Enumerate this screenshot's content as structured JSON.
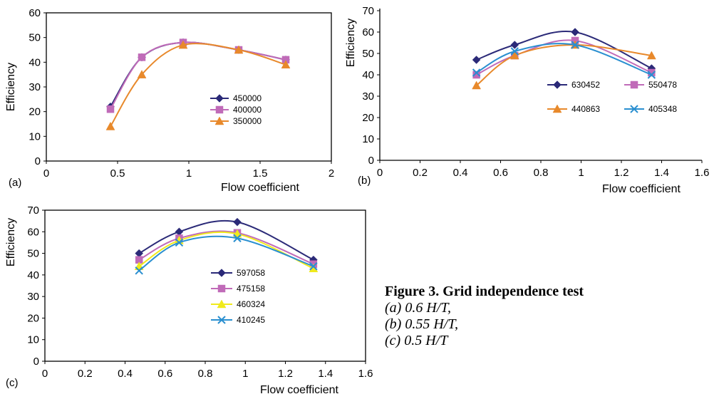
{
  "caption": {
    "title": "Figure 3. Grid independence test",
    "lines": [
      "(a) 0.6 H/T,",
      "(b) 0.55 H/T,",
      "(c) 0.5 H/T"
    ]
  },
  "chart_data": [
    {
      "panel": "(a)",
      "type": "line",
      "xlabel": "Flow coefficient",
      "ylabel": "Efficiency",
      "xlim": [
        0,
        2
      ],
      "ylim": [
        0,
        60
      ],
      "xticks": [
        "0",
        "0.5",
        "1",
        "1.5",
        "2"
      ],
      "yticks": [
        "0",
        "10",
        "20",
        "30",
        "40",
        "50",
        "60"
      ],
      "grid": false,
      "legend_position": "center-right",
      "series": [
        {
          "name": "450000",
          "color": "#2b2a78",
          "marker": "diamond",
          "x": [
            0.45,
            0.67,
            0.96,
            1.35,
            1.68
          ],
          "values": [
            22,
            42,
            48,
            45,
            41
          ]
        },
        {
          "name": "400000",
          "color": "#c06bb8",
          "marker": "square",
          "x": [
            0.45,
            0.67,
            0.96,
            1.35,
            1.68
          ],
          "values": [
            21,
            42,
            48,
            45,
            41
          ]
        },
        {
          "name": "350000",
          "color": "#e8892b",
          "marker": "triangle",
          "x": [
            0.45,
            0.67,
            0.96,
            1.35,
            1.68
          ],
          "values": [
            14,
            35,
            47,
            45,
            39
          ]
        }
      ]
    },
    {
      "panel": "(b)",
      "type": "line",
      "xlabel": "Flow coefficient",
      "ylabel": "Efficiency",
      "xlim": [
        0,
        1.6
      ],
      "ylim": [
        0,
        70
      ],
      "xticks": [
        "0",
        "0.2",
        "0.4",
        "0.6",
        "0.8",
        "1",
        "1.2",
        "1.4",
        "1.6"
      ],
      "yticks": [
        "0",
        "10",
        "20",
        "30",
        "40",
        "50",
        "60",
        "70"
      ],
      "grid": false,
      "legend_position": "center-right",
      "series": [
        {
          "name": "630452",
          "color": "#2b2a78",
          "marker": "diamond",
          "x": [
            0.48,
            0.67,
            0.97,
            1.35
          ],
          "values": [
            47,
            54,
            60,
            43
          ]
        },
        {
          "name": "550478",
          "color": "#c06bb8",
          "marker": "square",
          "x": [
            0.48,
            0.67,
            0.97,
            1.35
          ],
          "values": [
            40,
            49,
            56,
            41
          ]
        },
        {
          "name": "440863",
          "color": "#e8892b",
          "marker": "triangle",
          "x": [
            0.48,
            0.67,
            0.97,
            1.35
          ],
          "values": [
            35,
            49,
            54,
            49
          ]
        },
        {
          "name": "405348",
          "color": "#2a8fd0",
          "marker": "x",
          "x": [
            0.48,
            0.67,
            0.97,
            1.35
          ],
          "values": [
            41,
            51,
            54,
            40
          ]
        }
      ]
    },
    {
      "panel": "(c)",
      "type": "line",
      "xlabel": "Flow coefficient",
      "ylabel": "Efficiency",
      "xlim": [
        0,
        1.6
      ],
      "ylim": [
        0,
        70
      ],
      "xticks": [
        "0",
        "0.2",
        "0.4",
        "0.6",
        "0.8",
        "1",
        "1.2",
        "1.4",
        "1.6"
      ],
      "yticks": [
        "0",
        "10",
        "20",
        "30",
        "40",
        "50",
        "60",
        "70"
      ],
      "grid": false,
      "legend_position": "center-right",
      "series": [
        {
          "name": "597058",
          "color": "#2b2a78",
          "marker": "diamond",
          "x": [
            0.47,
            0.67,
            0.96,
            1.34
          ],
          "values": [
            50,
            60,
            64.5,
            47
          ]
        },
        {
          "name": "475158",
          "color": "#c06bb8",
          "marker": "square",
          "x": [
            0.47,
            0.67,
            0.96,
            1.34
          ],
          "values": [
            47,
            57,
            59.5,
            45
          ]
        },
        {
          "name": "460324",
          "color": "#f0ea1c",
          "marker": "triangle",
          "x": [
            0.47,
            0.67,
            0.96,
            1.34
          ],
          "values": [
            44,
            56,
            59,
            43
          ]
        },
        {
          "name": "410245",
          "color": "#2a8fd0",
          "marker": "x",
          "x": [
            0.47,
            0.67,
            0.96,
            1.34
          ],
          "values": [
            42,
            55,
            57,
            44
          ]
        }
      ]
    }
  ]
}
